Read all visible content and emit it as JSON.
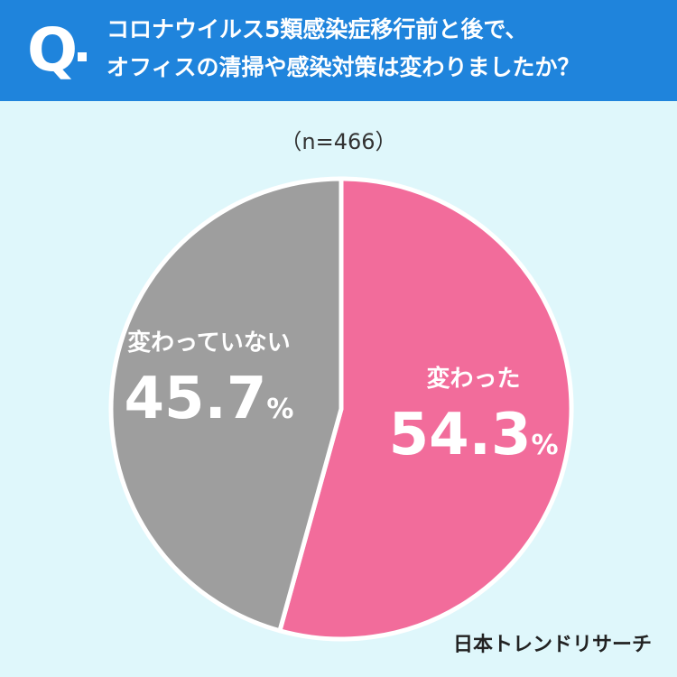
{
  "question": {
    "mark": "Q",
    "line1": "コロナウイルス5類感染症移行前と後で、",
    "line2": "オフィスの清掃や感染対策は変わりましたか？"
  },
  "sample_size": "（n=466）",
  "credit": "日本トレンドリサーチ",
  "chart_data": {
    "type": "pie",
    "title": "",
    "slices": [
      {
        "label": "変わった",
        "value": 54.3,
        "display": "54.3",
        "unit": "%",
        "color": "#f26c9b"
      },
      {
        "label": "変わっていない",
        "value": 45.7,
        "display": "45.7",
        "unit": "%",
        "color": "#9e9e9e"
      }
    ],
    "start": "12 o'clock",
    "direction": "clockwise"
  }
}
